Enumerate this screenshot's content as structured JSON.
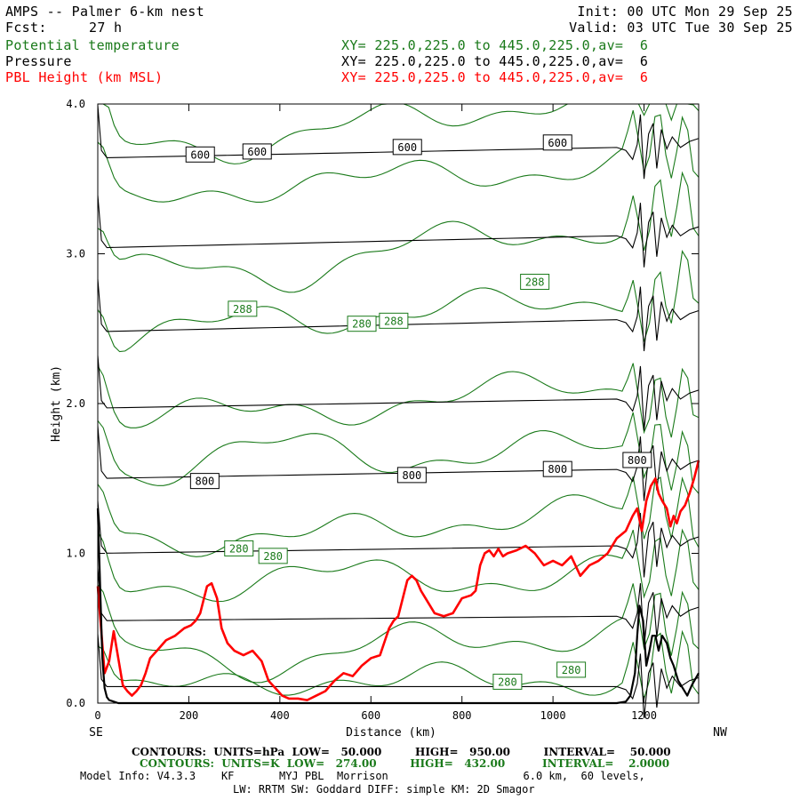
{
  "header": {
    "title": "AMPS -- Palmer 6-km nest",
    "fcst_label": "Fcst:",
    "fcst_value": "27 h",
    "init": "Init: 00 UTC Mon 29 Sep 25",
    "valid": "Valid: 03 UTC Tue 30 Sep 25",
    "fields": [
      {
        "name": "Potential temperature",
        "xy": "XY= 225.0,225.0 to 445.0,225.0,av=  6",
        "color": "#1a7a1a"
      },
      {
        "name": "Pressure",
        "xy": "XY= 225.0,225.0 to 445.0,225.0,av=  6",
        "color": "#000000"
      },
      {
        "name": "PBL Height (km MSL)",
        "xy": "XY= 225.0,225.0 to 445.0,225.0,av=  6",
        "color": "#ff0000"
      }
    ]
  },
  "chart_data": {
    "type": "line",
    "xlabel": "Distance (km)",
    "ylabel": "Height (km)",
    "xlim": [
      0,
      1320
    ],
    "ylim": [
      0,
      4.0
    ],
    "x_ticks": [
      0,
      200,
      400,
      600,
      800,
      1000,
      1200
    ],
    "y_ticks": [
      0.0,
      1.0,
      2.0,
      3.0,
      4.0
    ],
    "y_tick_labels": [
      "0.0",
      "1.0",
      "2.0",
      "3.0",
      "4.0"
    ],
    "left_end_label": "SE",
    "right_end_label": "NW",
    "series": [
      {
        "name": "PBL Height (km MSL)",
        "color": "#ff0000",
        "x": [
          0,
          15,
          25,
          35,
          45,
          55,
          65,
          75,
          85,
          95,
          105,
          115,
          130,
          150,
          170,
          190,
          205,
          215,
          225,
          240,
          250,
          262,
          272,
          285,
          300,
          320,
          340,
          360,
          375,
          390,
          405,
          420,
          440,
          460,
          480,
          500,
          520,
          540,
          560,
          580,
          600,
          620,
          640,
          650,
          660,
          670,
          680,
          690,
          700,
          710,
          720,
          740,
          760,
          780,
          800,
          820,
          830,
          840,
          850,
          860,
          870,
          880,
          890,
          900,
          920,
          940,
          960,
          980,
          1000,
          1020,
          1040,
          1060,
          1080,
          1100,
          1120,
          1140,
          1160,
          1175,
          1185,
          1195,
          1205,
          1215,
          1225,
          1232,
          1240,
          1250,
          1258,
          1265,
          1272,
          1280,
          1290,
          1300,
          1310,
          1320
        ],
        "y": [
          0.78,
          0.2,
          0.28,
          0.48,
          0.3,
          0.12,
          0.08,
          0.05,
          0.08,
          0.12,
          0.2,
          0.3,
          0.35,
          0.42,
          0.45,
          0.5,
          0.52,
          0.55,
          0.6,
          0.78,
          0.8,
          0.7,
          0.5,
          0.4,
          0.35,
          0.32,
          0.35,
          0.28,
          0.15,
          0.1,
          0.05,
          0.03,
          0.03,
          0.02,
          0.05,
          0.08,
          0.15,
          0.2,
          0.18,
          0.25,
          0.3,
          0.32,
          0.5,
          0.55,
          0.58,
          0.7,
          0.82,
          0.85,
          0.82,
          0.75,
          0.7,
          0.6,
          0.58,
          0.6,
          0.7,
          0.72,
          0.75,
          0.92,
          1.0,
          1.02,
          0.98,
          1.03,
          0.98,
          1.0,
          1.02,
          1.05,
          1.0,
          0.92,
          0.95,
          0.92,
          0.98,
          0.85,
          0.92,
          0.95,
          1.0,
          1.1,
          1.15,
          1.25,
          1.3,
          1.15,
          1.35,
          1.45,
          1.5,
          1.4,
          1.35,
          1.3,
          1.18,
          1.25,
          1.2,
          1.28,
          1.32,
          1.4,
          1.5,
          1.62
        ]
      },
      {
        "name": "Terrain",
        "color": "#000000",
        "x": [
          0,
          5,
          10,
          15,
          20,
          25,
          35,
          45,
          60,
          80,
          100,
          1100,
          1140,
          1160,
          1170,
          1180,
          1185,
          1190,
          1198,
          1205,
          1212,
          1218,
          1225,
          1232,
          1240,
          1250,
          1258,
          1265,
          1275,
          1285,
          1295,
          1305,
          1320
        ],
        "y": [
          1.3,
          0.8,
          0.3,
          0.1,
          0.04,
          0.02,
          0.01,
          0.0,
          0.0,
          0.0,
          0.0,
          0.0,
          0.0,
          0.01,
          0.05,
          0.2,
          0.45,
          0.65,
          0.55,
          0.25,
          0.35,
          0.45,
          0.45,
          0.35,
          0.45,
          0.4,
          0.3,
          0.25,
          0.15,
          0.1,
          0.05,
          0.12,
          0.2
        ]
      }
    ],
    "pressure_contours": {
      "units": "hPa",
      "color": "#000000",
      "label_points": [
        {
          "label": "600",
          "x": 225,
          "y": 3.66
        },
        {
          "label": "600",
          "x": 350,
          "y": 3.68
        },
        {
          "label": "600",
          "x": 680,
          "y": 3.71
        },
        {
          "label": "600",
          "x": 1010,
          "y": 3.74
        },
        {
          "label": "800",
          "x": 235,
          "y": 1.48
        },
        {
          "label": "800",
          "x": 690,
          "y": 1.52
        },
        {
          "label": "800",
          "x": 1010,
          "y": 1.56
        },
        {
          "label": "800",
          "x": 1185,
          "y": 1.62
        }
      ],
      "levels_y_at_left": [
        0.11,
        0.55,
        1.0,
        1.5,
        1.97,
        2.48,
        3.04,
        3.64
      ],
      "levels_y_at_right": [
        0.15,
        0.62,
        1.09,
        1.6,
        2.07,
        2.6,
        3.16,
        3.75
      ]
    },
    "theta_contours": {
      "units": "K",
      "color": "#1a7a1a",
      "label_points": [
        {
          "label": "288",
          "x": 318,
          "y": 2.63
        },
        {
          "label": "280",
          "x": 580,
          "y": 2.53
        },
        {
          "label": "288",
          "x": 650,
          "y": 2.55
        },
        {
          "label": "288",
          "x": 960,
          "y": 2.81
        },
        {
          "label": "280",
          "x": 310,
          "y": 1.03
        },
        {
          "label": "280",
          "x": 385,
          "y": 0.98
        },
        {
          "label": "280",
          "x": 900,
          "y": 0.14
        },
        {
          "label": "280",
          "x": 1040,
          "y": 0.22
        }
      ]
    }
  },
  "footer": {
    "line1": "CONTOURS:  UNITS=hPa  LOW=   50.000         HIGH=   950.00         INTERVAL=    50.000",
    "line2": "CONTOURS:  UNITS=K  LOW=   274.00         HIGH=   432.00          INTERVAL=    2.0000",
    "line3": "Model Info: V4.3.3    KF       MYJ PBL  Morrison                     6.0 km,  60 levels,",
    "line4": "LW: RRTM SW: Goddard DIFF: simple KM: 2D Smagor"
  }
}
